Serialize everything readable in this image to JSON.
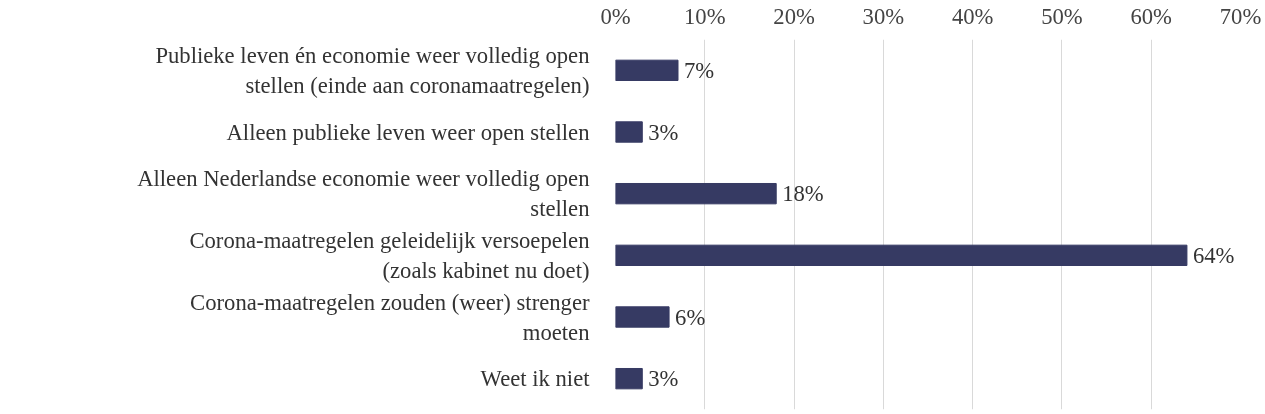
{
  "chart_data": {
    "type": "bar",
    "orientation": "horizontal",
    "categories": [
      "Publieke leven én economie weer volledig open stellen (einde aan coronamaatregelen)",
      "Alleen publieke leven weer open stellen",
      "Alleen Nederlandse economie weer volledig open stellen",
      "Corona-maatregelen geleidelijk versoepelen (zoals kabinet nu doet)",
      "Corona-maatregelen zouden (weer) strenger moeten",
      "Weet ik niet"
    ],
    "values": [
      7,
      3,
      18,
      64,
      6,
      3
    ],
    "value_labels": [
      "7%",
      "3%",
      "18%",
      "64%",
      "6%",
      "3%"
    ],
    "color": "#363a63",
    "xlim": [
      0,
      70
    ],
    "xticks": [
      {
        "value": 0,
        "label": "0%"
      },
      {
        "value": 10,
        "label": "10%"
      },
      {
        "value": 20,
        "label": "20%"
      },
      {
        "value": 30,
        "label": "30%"
      },
      {
        "value": 40,
        "label": "40%"
      },
      {
        "value": 50,
        "label": "50%"
      },
      {
        "value": 60,
        "label": "60%"
      },
      {
        "value": 70,
        "label": "70%"
      }
    ],
    "grid": "x"
  }
}
